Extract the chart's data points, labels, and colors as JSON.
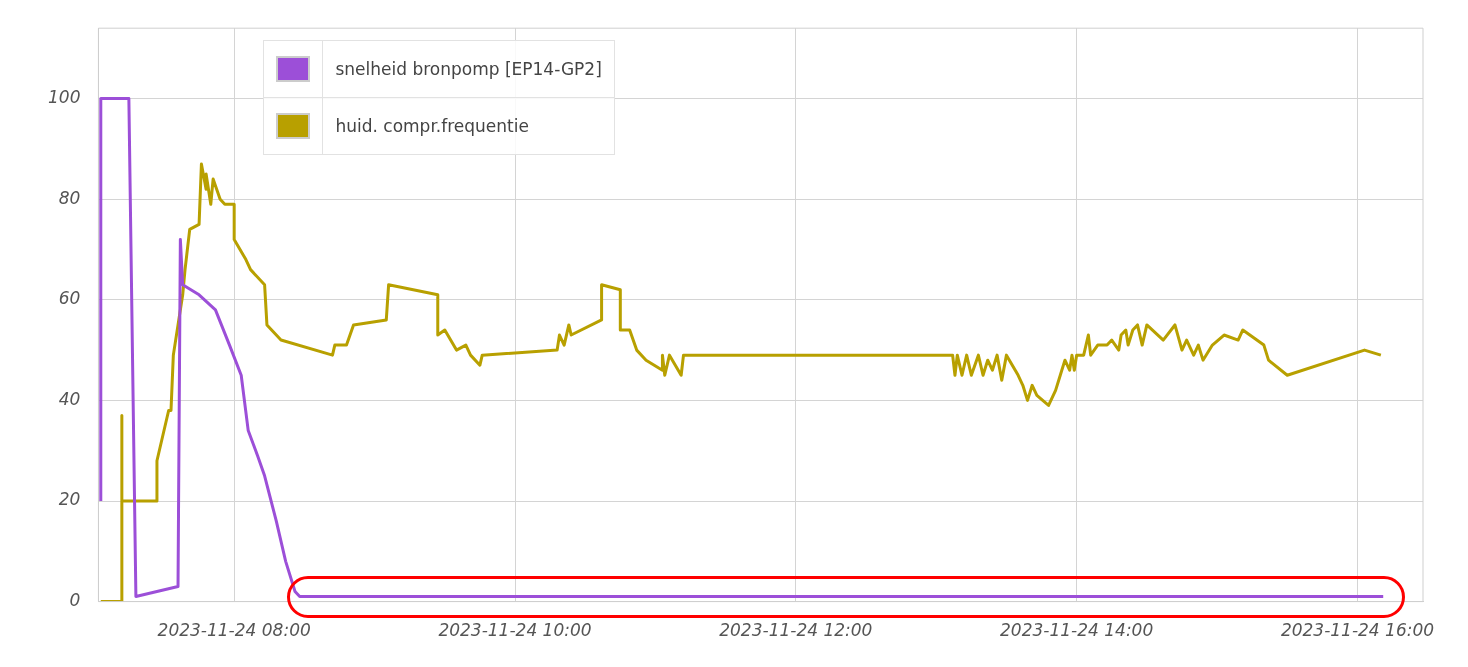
{
  "chart_data": {
    "type": "line",
    "xlim": [
      "2023-11-24T07:02",
      "2023-11-24T16:28"
    ],
    "ylim": [
      0,
      114
    ],
    "xticks": [
      {
        "value": "2023-11-24T08:00",
        "label": "2023-11-24 08:00"
      },
      {
        "value": "2023-11-24T10:00",
        "label": "2023-11-24 10:00"
      },
      {
        "value": "2023-11-24T12:00",
        "label": "2023-11-24 12:00"
      },
      {
        "value": "2023-11-24T14:00",
        "label": "2023-11-24 14:00"
      },
      {
        "value": "2023-11-24T16:00",
        "label": "2023-11-24 16:00"
      }
    ],
    "yticks": [
      0,
      20,
      40,
      60,
      80,
      100
    ],
    "grid": true,
    "legend": "top left",
    "marker": "none",
    "line_style": "solid",
    "series": [
      {
        "name": "snelheid bronpomp [EP14-GP2]",
        "color": "#9c4fd8",
        "x": [
          "2023-11-24T07:03",
          "2023-11-24T07:03",
          "2023-11-24T07:15",
          "2023-11-24T07:18",
          "2023-11-24T07:36",
          "2023-11-24T07:37",
          "2023-11-24T07:38",
          "2023-11-24T07:45",
          "2023-11-24T07:52",
          "2023-11-24T07:58",
          "2023-11-24T08:03",
          "2023-11-24T08:06",
          "2023-11-24T08:10",
          "2023-11-24T08:13",
          "2023-11-24T08:18",
          "2023-11-24T08:22",
          "2023-11-24T08:26",
          "2023-11-24T08:28",
          "2023-11-24T16:11"
        ],
        "values": [
          20,
          100,
          100,
          1,
          3,
          72,
          63,
          61,
          58,
          51,
          45,
          34,
          29,
          25,
          16,
          8,
          2,
          1,
          1
        ]
      },
      {
        "name": "huid. compr.frequentie",
        "color": "#b8a000",
        "x": [
          "2023-11-24T07:03",
          "2023-11-24T07:12",
          "2023-11-24T07:12",
          "2023-11-24T07:12",
          "2023-11-24T07:27",
          "2023-11-24T07:27",
          "2023-11-24T07:32",
          "2023-11-24T07:33",
          "2023-11-24T07:34",
          "2023-11-24T07:36",
          "2023-11-24T07:38",
          "2023-11-24T07:39",
          "2023-11-24T07:41",
          "2023-11-24T07:45",
          "2023-11-24T07:46",
          "2023-11-24T07:48",
          "2023-11-24T07:48",
          "2023-11-24T07:50",
          "2023-11-24T07:51",
          "2023-11-24T07:54",
          "2023-11-24T07:56",
          "2023-11-24T08:00",
          "2023-11-24T08:00",
          "2023-11-24T08:05",
          "2023-11-24T08:07",
          "2023-11-24T08:13",
          "2023-11-24T08:14",
          "2023-11-24T08:20",
          "2023-11-24T08:42",
          "2023-11-24T08:43",
          "2023-11-24T08:48",
          "2023-11-24T08:51",
          "2023-11-24T09:05",
          "2023-11-24T09:06",
          "2023-11-24T09:27",
          "2023-11-24T09:27",
          "2023-11-24T09:30",
          "2023-11-24T09:35",
          "2023-11-24T09:39",
          "2023-11-24T09:41",
          "2023-11-24T09:45",
          "2023-11-24T09:46",
          "2023-11-24T10:18",
          "2023-11-24T10:19",
          "2023-11-24T10:21",
          "2023-11-24T10:23",
          "2023-11-24T10:24",
          "2023-11-24T10:37",
          "2023-11-24T10:37",
          "2023-11-24T10:45",
          "2023-11-24T10:45",
          "2023-11-24T10:49",
          "2023-11-24T10:52",
          "2023-11-24T10:56",
          "2023-11-24T11:03",
          "2023-11-24T11:03",
          "2023-11-24T11:04",
          "2023-11-24T11:06",
          "2023-11-24T11:11",
          "2023-11-24T11:12",
          "2023-11-24T13:07",
          "2023-11-24T13:08",
          "2023-11-24T13:09",
          "2023-11-24T13:11",
          "2023-11-24T13:13",
          "2023-11-24T13:15",
          "2023-11-24T13:18",
          "2023-11-24T13:20",
          "2023-11-24T13:22",
          "2023-11-24T13:24",
          "2023-11-24T13:26",
          "2023-11-24T13:28",
          "2023-11-24T13:30",
          "2023-11-24T13:35",
          "2023-11-24T13:37",
          "2023-11-24T13:39",
          "2023-11-24T13:41",
          "2023-11-24T13:43",
          "2023-11-24T13:48",
          "2023-11-24T13:51",
          "2023-11-24T13:53",
          "2023-11-24T13:55",
          "2023-11-24T13:57",
          "2023-11-24T13:58",
          "2023-11-24T13:59",
          "2023-11-24T14:00",
          "2023-11-24T14:03",
          "2023-11-24T14:05",
          "2023-11-24T14:06",
          "2023-11-24T14:09",
          "2023-11-24T14:13",
          "2023-11-24T14:15",
          "2023-11-24T14:18",
          "2023-11-24T14:19",
          "2023-11-24T14:21",
          "2023-11-24T14:22",
          "2023-11-24T14:24",
          "2023-11-24T14:26",
          "2023-11-24T14:28",
          "2023-11-24T14:30",
          "2023-11-24T14:37",
          "2023-11-24T14:42",
          "2023-11-24T14:45",
          "2023-11-24T14:47",
          "2023-11-24T14:50",
          "2023-11-24T14:52",
          "2023-11-24T14:54",
          "2023-11-24T14:58",
          "2023-11-24T15:03",
          "2023-11-24T15:09",
          "2023-11-24T15:11",
          "2023-11-24T15:20",
          "2023-11-24T15:22",
          "2023-11-24T15:30",
          "2023-11-24T16:03",
          "2023-11-24T16:10"
        ],
        "values": [
          0,
          0,
          37,
          20,
          20,
          28,
          38,
          38,
          49,
          55,
          61,
          66,
          74,
          75,
          87,
          82,
          85,
          79,
          84,
          80,
          79,
          79,
          72,
          68,
          66,
          63,
          55,
          52,
          49,
          51,
          51,
          55,
          56,
          63,
          61,
          53,
          54,
          50,
          51,
          49,
          47,
          49,
          50,
          53,
          51,
          55,
          53,
          56,
          63,
          62,
          54,
          54,
          50,
          48,
          46,
          49,
          45,
          49,
          45,
          49,
          49,
          45,
          49,
          45,
          49,
          45,
          49,
          45,
          48,
          46,
          49,
          44,
          49,
          45,
          43,
          40,
          43,
          41,
          39,
          42,
          45,
          48,
          46,
          49,
          46,
          49,
          49,
          53,
          49,
          51,
          51,
          52,
          50,
          53,
          54,
          51,
          54,
          55,
          51,
          55,
          52,
          55,
          50,
          52,
          49,
          51,
          48,
          51,
          53,
          52,
          54,
          51,
          48,
          45,
          50,
          49
        ]
      }
    ]
  }
}
